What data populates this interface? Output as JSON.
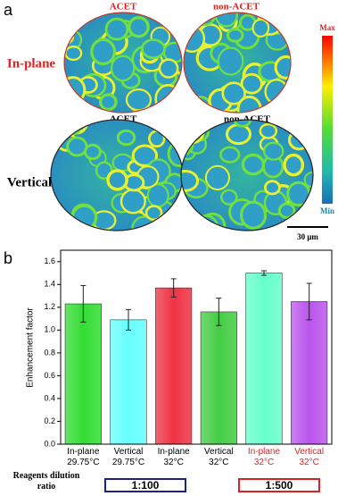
{
  "panel_a": {
    "label": "a",
    "top_left_title": "ACET",
    "top_right_title": "non-ACET",
    "bottom_left_title": "ACET",
    "bottom_right_title": "non-ACET",
    "row1_label": "In-plane",
    "row2_label": "Vertical",
    "colorbar_max": "Max",
    "colorbar_min": "Min",
    "scale_bar": "30 μm"
  },
  "chart_data": {
    "type": "bar",
    "panel_label": "b",
    "ylabel": "Enhancement factor",
    "categories": [
      "In-plane 29.75°C",
      "Vertical 29.75°C",
      "In-plane 32°C",
      "Vertical 32°C",
      "In-plane 32°C",
      "Vertical 32°C"
    ],
    "category_colors": [
      "#000000",
      "#000000",
      "#000000",
      "#000000",
      "#e02020",
      "#e02020"
    ],
    "values": [
      1.23,
      1.09,
      1.37,
      1.16,
      1.5,
      1.25
    ],
    "errors": [
      0.16,
      0.09,
      0.08,
      0.12,
      0.02,
      0.16
    ],
    "colors": [
      "#33dd33",
      "#66ffff",
      "#ee3344",
      "#44cc44",
      "#66ffcc",
      "#bb55ee"
    ],
    "ylim": [
      0,
      1.7
    ],
    "yticks": [
      {
        "value": 0,
        "label": "0.0"
      },
      0.2,
      0.4,
      0.6,
      0.8,
      {
        "value": 1,
        "label": "1.0"
      },
      1.2,
      1.4,
      1.6
    ]
  },
  "dilution": {
    "label": "Reagents dilution ratio",
    "groups": [
      {
        "label": "1:100",
        "color": "#1a237e"
      },
      {
        "label": "1:500",
        "color": "#e02020"
      }
    ]
  }
}
